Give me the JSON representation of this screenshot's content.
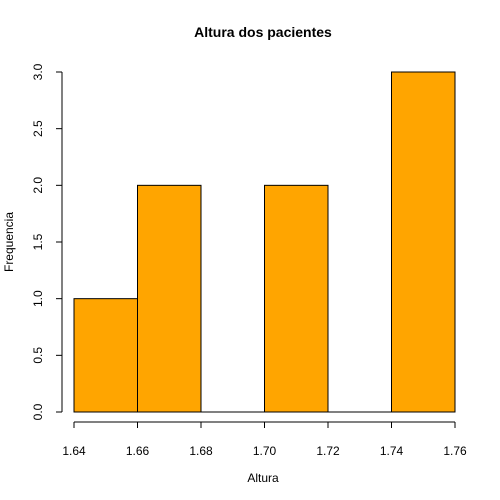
{
  "chart_data": {
    "type": "bar",
    "title": "Altura dos pacientes",
    "xlabel": "Altura",
    "ylabel": "Frequencia",
    "bins": [
      {
        "x0": 1.64,
        "x1": 1.66,
        "value": 1
      },
      {
        "x0": 1.66,
        "x1": 1.68,
        "value": 2
      },
      {
        "x0": 1.68,
        "x1": 1.7,
        "value": 0
      },
      {
        "x0": 1.7,
        "x1": 1.72,
        "value": 2
      },
      {
        "x0": 1.72,
        "x1": 1.74,
        "value": 0
      },
      {
        "x0": 1.74,
        "x1": 1.76,
        "value": 3
      }
    ],
    "xlim": [
      1.64,
      1.76
    ],
    "ylim": [
      0,
      3
    ],
    "x_ticks": [
      "1.64",
      "1.66",
      "1.68",
      "1.70",
      "1.72",
      "1.74",
      "1.76"
    ],
    "y_ticks": [
      "0.0",
      "0.5",
      "1.0",
      "1.5",
      "2.0",
      "2.5",
      "3.0"
    ],
    "bar_color": "#FFA500",
    "grid": false
  }
}
